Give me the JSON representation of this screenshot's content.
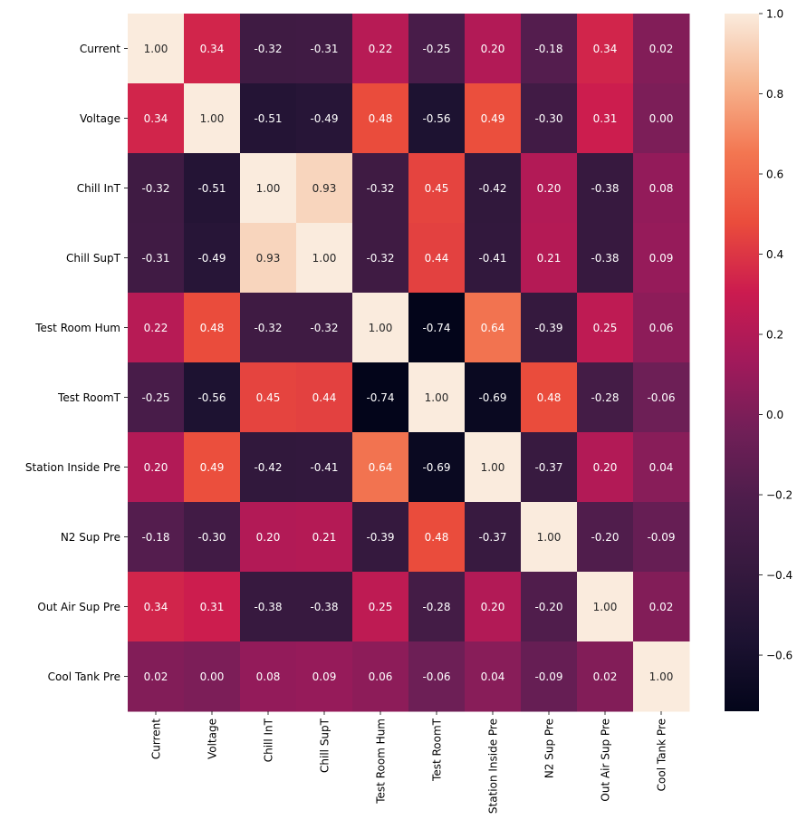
{
  "chart_data": {
    "type": "heatmap",
    "title": "",
    "xlabel": "",
    "ylabel": "",
    "colormap": "rocket",
    "vmin": -0.74,
    "vmax": 1.0,
    "annotation_format": "0.00",
    "x_labels": [
      "Current",
      "Voltage",
      "Chill InT",
      "Chill SupT",
      "Test Room Hum",
      "Test RoomT",
      "Station Inside Pre",
      "N2 Sup Pre",
      "Out Air Sup Pre",
      "Cool Tank Pre"
    ],
    "y_labels": [
      "Current",
      "Voltage",
      "Chill InT",
      "Chill SupT",
      "Test Room Hum",
      "Test RoomT",
      "Station Inside Pre",
      "N2 Sup Pre",
      "Out Air Sup Pre",
      "Cool Tank Pre"
    ],
    "values": [
      [
        1.0,
        0.34,
        -0.32,
        -0.31,
        0.22,
        -0.25,
        0.2,
        -0.18,
        0.34,
        0.02
      ],
      [
        0.34,
        1.0,
        -0.51,
        -0.49,
        0.48,
        -0.56,
        0.49,
        -0.3,
        0.31,
        0.0
      ],
      [
        -0.32,
        -0.51,
        1.0,
        0.93,
        -0.32,
        0.45,
        -0.42,
        0.2,
        -0.38,
        0.08
      ],
      [
        -0.31,
        -0.49,
        0.93,
        1.0,
        -0.32,
        0.44,
        -0.41,
        0.21,
        -0.38,
        0.09
      ],
      [
        0.22,
        0.48,
        -0.32,
        -0.32,
        1.0,
        -0.74,
        0.64,
        -0.39,
        0.25,
        0.06
      ],
      [
        -0.25,
        -0.56,
        0.45,
        0.44,
        -0.74,
        1.0,
        -0.69,
        0.48,
        -0.28,
        -0.06
      ],
      [
        0.2,
        0.49,
        -0.42,
        -0.41,
        0.64,
        -0.69,
        1.0,
        -0.37,
        0.2,
        0.04
      ],
      [
        -0.18,
        -0.3,
        0.2,
        0.21,
        -0.39,
        0.48,
        -0.37,
        1.0,
        -0.2,
        -0.09
      ],
      [
        0.34,
        0.31,
        -0.38,
        -0.38,
        0.25,
        -0.28,
        0.2,
        -0.2,
        1.0,
        0.02
      ],
      [
        0.02,
        0.0,
        0.08,
        0.09,
        0.06,
        -0.06,
        0.04,
        -0.09,
        0.02,
        1.0
      ]
    ],
    "colorbar": {
      "ticks": [
        1.0,
        0.8,
        0.6,
        0.4,
        0.2,
        0.0,
        -0.2,
        -0.4,
        -0.6
      ],
      "tick_labels": [
        "1.0",
        "0.8",
        "0.6",
        "0.4",
        "0.2",
        "0.0",
        "−0.2",
        "−0.4",
        "−0.6"
      ],
      "placement": "right"
    },
    "colormap_stops": [
      {
        "v": 0.0,
        "color": "#03051a"
      },
      {
        "v": 0.1,
        "color": "#1c1231"
      },
      {
        "v": 0.2,
        "color": "#35193e"
      },
      {
        "v": 0.3,
        "color": "#4c1d4b"
      },
      {
        "v": 0.4,
        "color": "#701f57"
      },
      {
        "v": 0.5,
        "color": "#a11a5b"
      },
      {
        "v": 0.6,
        "color": "#cb1b4f"
      },
      {
        "v": 0.7,
        "color": "#ea4c3c"
      },
      {
        "v": 0.8,
        "color": "#f37651"
      },
      {
        "v": 0.9,
        "color": "#f6b48e"
      },
      {
        "v": 1.0,
        "color": "#faebdd"
      }
    ]
  }
}
